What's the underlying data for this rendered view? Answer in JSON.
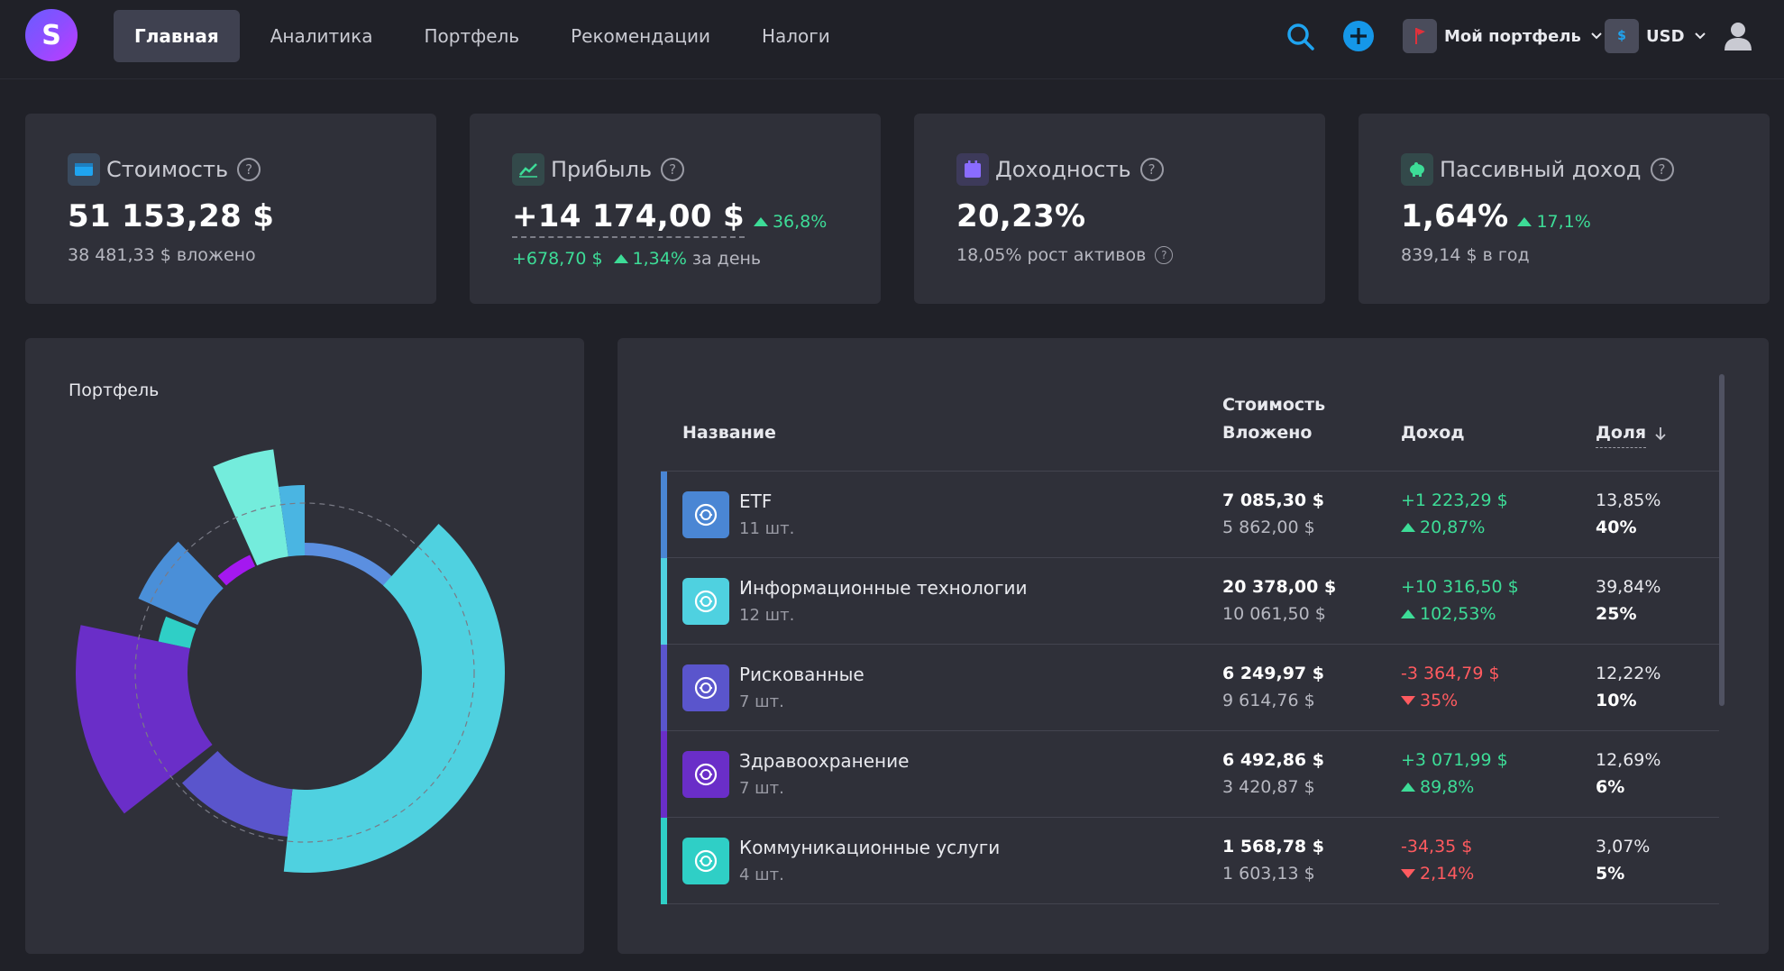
{
  "nav": {
    "logo_letter": "S",
    "items": [
      {
        "label": "Главная",
        "active": true
      },
      {
        "label": "Аналитика"
      },
      {
        "label": "Портфель"
      },
      {
        "label": "Рекомендации"
      },
      {
        "label": "Налоги"
      }
    ],
    "portfolio_select": "Мой портфель",
    "currency_select": "USD",
    "currency_symbol": "$"
  },
  "stats": {
    "value": {
      "label": "Стоимость",
      "amount": "51 153,28 $",
      "sub": "38 481,33 $ вложено"
    },
    "profit": {
      "label": "Прибыль",
      "amount": "+14 174,00 $",
      "delta": "36,8%",
      "day_amount": "+678,70 $",
      "day_pct": "1,34%",
      "day_suffix": "за день"
    },
    "yield": {
      "label": "Доходность",
      "amount": "20,23%",
      "sub": "18,05% рост активов"
    },
    "passive": {
      "label": "Пассивный доход",
      "amount": "1,64%",
      "delta": "17,1%",
      "sub": "839,14 $ в год"
    }
  },
  "chart": {
    "title": "Портфель",
    "colors": {
      "etf": "#5b8fe0",
      "it": "#4fd1e0",
      "risky": "#5a55cc",
      "health": "#6a2ec8",
      "comm": "#2fcfc6",
      "magenta": "#a418f0",
      "mint": "#74ecdc",
      "sky": "#4ab5e2",
      "blue": "#4a8fd8"
    }
  },
  "table": {
    "headers": {
      "name": "Название",
      "value": "Стоимость",
      "invested": "Вложено",
      "income": "Доход",
      "share": "Доля"
    },
    "rows": [
      {
        "name": "ETF",
        "count": "11 шт.",
        "value": "7 085,30 $",
        "invested": "5 862,00 $",
        "income": "+1 223,29 $",
        "income_pct": "20,87%",
        "positive": true,
        "share": "13,85%",
        "target": "40%",
        "color": "#4a86d4"
      },
      {
        "name": "Информационные технологии",
        "count": "12 шт.",
        "value": "20 378,00 $",
        "invested": "10 061,50 $",
        "income": "+10 316,50 $",
        "income_pct": "102,53%",
        "positive": true,
        "share": "39,84%",
        "target": "25%",
        "color": "#4fd1e0"
      },
      {
        "name": "Рискованные",
        "count": "7 шт.",
        "value": "6 249,97 $",
        "invested": "9 614,76 $",
        "income": "-3 364,79 $",
        "income_pct": "35%",
        "positive": false,
        "share": "12,22%",
        "target": "10%",
        "color": "#5a55cc"
      },
      {
        "name": "Здравоохранение",
        "count": "7 шт.",
        "value": "6 492,86 $",
        "invested": "3 420,87 $",
        "income": "+3 071,99 $",
        "income_pct": "89,8%",
        "positive": true,
        "share": "12,69%",
        "target": "6%",
        "color": "#6a2ec8"
      },
      {
        "name": "Коммуникационные услуги",
        "count": "4 шт.",
        "value": "1 568,78 $",
        "invested": "1 603,13 $",
        "income": "-34,35 $",
        "income_pct": "2,14%",
        "positive": false,
        "share": "3,07%",
        "target": "5%",
        "color": "#2fcfc6"
      }
    ]
  }
}
